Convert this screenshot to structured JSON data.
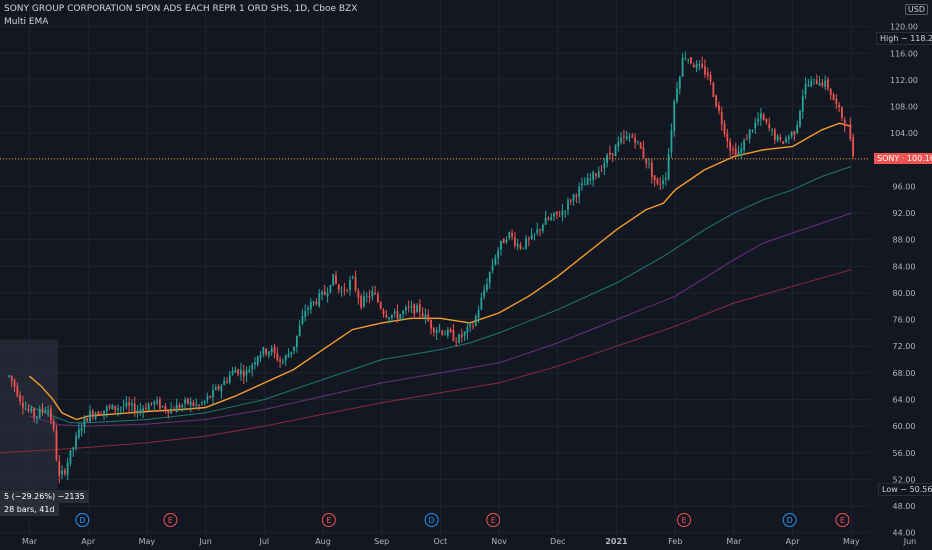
{
  "header": {
    "title": "SONY GROUP CORPORATION SPON ADS EACH REPR 1 ORD SHS, 1D, Cboe BZX",
    "indicator": "Multi EMA"
  },
  "currency": "USD",
  "high_label": "High",
  "high_value": "118.22",
  "low_label": "Low",
  "low_value": "50.56",
  "ticker_label": "SONY",
  "last_price": "100.16",
  "measure": {
    "line1": "5 (−29.26%) −2135",
    "line2": "28 bars, 41d"
  },
  "colors": {
    "up": "#26a69a",
    "down": "#ef5350",
    "ema_short": "#f59d2a",
    "ema_2": "#1b7a6b",
    "ema_3": "#6b2f7d",
    "ema_4": "#8e2a3a",
    "background": "#131722",
    "grid": "#1f2330"
  },
  "chart_data": {
    "type": "candlestick",
    "title": "SONY GROUP CORPORATION SPON ADS EACH REPR 1 ORD SHS, 1D, Cboe BZX",
    "y_ticks": [
      44,
      48,
      52,
      56,
      60,
      64,
      68,
      72,
      76,
      80,
      84,
      88,
      92,
      96,
      100,
      104,
      108,
      112,
      116,
      120
    ],
    "ylim": [
      43.5,
      124
    ],
    "x_ticks": [
      {
        "label": "Mar",
        "t": 0
      },
      {
        "label": "Apr",
        "t": 1
      },
      {
        "label": "May",
        "t": 2
      },
      {
        "label": "Jun",
        "t": 3
      },
      {
        "label": "Jul",
        "t": 4
      },
      {
        "label": "Aug",
        "t": 5
      },
      {
        "label": "Sep",
        "t": 6
      },
      {
        "label": "Oct",
        "t": 7
      },
      {
        "label": "Nov",
        "t": 8
      },
      {
        "label": "Dec",
        "t": 9
      },
      {
        "label": "2021",
        "t": 10
      },
      {
        "label": "Feb",
        "t": 11
      },
      {
        "label": "Mar",
        "t": 12
      },
      {
        "label": "Apr",
        "t": 13
      },
      {
        "label": "May",
        "t": 14
      },
      {
        "label": "Jun",
        "t": 15
      }
    ],
    "events": [
      {
        "label": "D",
        "t": 0.9,
        "kind": "dividend"
      },
      {
        "label": "E",
        "t": 2.4,
        "kind": "earnings"
      },
      {
        "label": "E",
        "t": 5.1,
        "kind": "earnings"
      },
      {
        "label": "D",
        "t": 6.85,
        "kind": "dividend"
      },
      {
        "label": "E",
        "t": 7.9,
        "kind": "earnings"
      },
      {
        "label": "E",
        "t": 11.15,
        "kind": "earnings"
      },
      {
        "label": "D",
        "t": 12.95,
        "kind": "dividend"
      },
      {
        "label": "E",
        "t": 13.85,
        "kind": "earnings"
      }
    ],
    "price_anchors": [
      [
        -0.35,
        67.5
      ],
      [
        -0.25,
        66
      ],
      [
        -0.15,
        64
      ],
      [
        -0.05,
        62.5
      ],
      [
        0.1,
        61.5
      ],
      [
        0.3,
        63
      ],
      [
        0.4,
        60
      ],
      [
        0.5,
        52
      ],
      [
        0.6,
        53.5
      ],
      [
        0.75,
        57
      ],
      [
        0.9,
        60.5
      ],
      [
        1.05,
        62
      ],
      [
        1.3,
        62.5
      ],
      [
        1.6,
        63
      ],
      [
        1.85,
        62.5
      ],
      [
        2.1,
        63.5
      ],
      [
        2.4,
        62.5
      ],
      [
        2.7,
        63.5
      ],
      [
        2.9,
        63
      ],
      [
        3.2,
        65.5
      ],
      [
        3.5,
        68.5
      ],
      [
        3.7,
        68
      ],
      [
        3.9,
        71
      ],
      [
        4.1,
        71.5
      ],
      [
        4.3,
        69.5
      ],
      [
        4.5,
        72
      ],
      [
        4.7,
        77.5
      ],
      [
        4.9,
        79
      ],
      [
        5.05,
        80
      ],
      [
        5.15,
        82.5
      ],
      [
        5.3,
        80
      ],
      [
        5.5,
        82
      ],
      [
        5.65,
        78.5
      ],
      [
        5.85,
        80
      ],
      [
        6.05,
        77
      ],
      [
        6.25,
        76.5
      ],
      [
        6.45,
        77.5
      ],
      [
        6.65,
        77.5
      ],
      [
        6.85,
        75
      ],
      [
        7.1,
        74
      ],
      [
        7.3,
        73
      ],
      [
        7.55,
        75
      ],
      [
        7.7,
        79
      ],
      [
        7.8,
        82
      ],
      [
        7.95,
        86
      ],
      [
        8.15,
        89
      ],
      [
        8.35,
        87
      ],
      [
        8.55,
        88
      ],
      [
        8.75,
        90.5
      ],
      [
        9.05,
        92
      ],
      [
        9.3,
        95
      ],
      [
        9.55,
        97
      ],
      [
        9.7,
        98.5
      ],
      [
        9.9,
        101
      ],
      [
        10.1,
        103
      ],
      [
        10.3,
        103.5
      ],
      [
        10.5,
        100
      ],
      [
        10.7,
        96
      ],
      [
        10.85,
        98
      ],
      [
        11.0,
        110
      ],
      [
        11.15,
        116
      ],
      [
        11.35,
        114
      ],
      [
        11.55,
        113
      ],
      [
        11.75,
        107
      ],
      [
        11.95,
        101.5
      ],
      [
        12.1,
        101
      ],
      [
        12.25,
        104
      ],
      [
        12.45,
        106.5
      ],
      [
        12.65,
        104
      ],
      [
        12.8,
        102.5
      ],
      [
        13.05,
        104.5
      ],
      [
        13.2,
        111
      ],
      [
        13.45,
        112
      ],
      [
        13.6,
        111
      ],
      [
        13.75,
        108
      ],
      [
        13.9,
        105.5
      ],
      [
        14.0,
        103
      ],
      [
        14.05,
        100.16
      ]
    ],
    "ema_short": [
      [
        0.0,
        67.5
      ],
      [
        0.2,
        66
      ],
      [
        0.4,
        64
      ],
      [
        0.55,
        62
      ],
      [
        0.8,
        61
      ],
      [
        1.0,
        61.5
      ],
      [
        1.4,
        61.8
      ],
      [
        2.0,
        62.2
      ],
      [
        2.6,
        62.5
      ],
      [
        3.0,
        62.8
      ],
      [
        3.5,
        64.5
      ],
      [
        4.0,
        66.5
      ],
      [
        4.5,
        68.5
      ],
      [
        5.0,
        71.5
      ],
      [
        5.5,
        74.5
      ],
      [
        6.0,
        75.5
      ],
      [
        6.5,
        76.2
      ],
      [
        7.0,
        76.2
      ],
      [
        7.5,
        75.5
      ],
      [
        8.0,
        77
      ],
      [
        8.5,
        79.5
      ],
      [
        9.0,
        82.5
      ],
      [
        9.5,
        86
      ],
      [
        10.0,
        89.5
      ],
      [
        10.5,
        92.5
      ],
      [
        10.8,
        93.5
      ],
      [
        11.0,
        95.5
      ],
      [
        11.5,
        98.5
      ],
      [
        12.0,
        100.5
      ],
      [
        12.5,
        101.5
      ],
      [
        13.0,
        102
      ],
      [
        13.5,
        104.5
      ],
      [
        13.8,
        105.5
      ],
      [
        14.0,
        105
      ]
    ],
    "ema_2": [
      [
        0.0,
        63
      ],
      [
        0.4,
        61.5
      ],
      [
        0.7,
        60.5
      ],
      [
        1.0,
        60.5
      ],
      [
        2.0,
        61
      ],
      [
        3.0,
        62
      ],
      [
        4.0,
        64
      ],
      [
        5.0,
        67
      ],
      [
        6.0,
        70
      ],
      [
        7.0,
        71.5
      ],
      [
        7.5,
        72.5
      ],
      [
        8.0,
        74
      ],
      [
        9.0,
        77.5
      ],
      [
        10.0,
        81.5
      ],
      [
        10.8,
        85.5
      ],
      [
        11.5,
        89.5
      ],
      [
        12.0,
        92
      ],
      [
        12.5,
        94
      ],
      [
        13.0,
        95.5
      ],
      [
        13.5,
        97.5
      ],
      [
        14.0,
        99
      ]
    ],
    "ema_3": [
      [
        0.0,
        61.5
      ],
      [
        0.5,
        60.2
      ],
      [
        1.0,
        60
      ],
      [
        2.0,
        60.3
      ],
      [
        3.0,
        61
      ],
      [
        4.0,
        62.5
      ],
      [
        5.0,
        64.5
      ],
      [
        6.0,
        66.5
      ],
      [
        7.0,
        68
      ],
      [
        8.0,
        69.5
      ],
      [
        9.0,
        72.5
      ],
      [
        10.0,
        76
      ],
      [
        11.0,
        79.5
      ],
      [
        12.0,
        85
      ],
      [
        12.5,
        87.5
      ],
      [
        13.0,
        89
      ],
      [
        13.5,
        90.5
      ],
      [
        14.0,
        92
      ]
    ],
    "ema_4": [
      [
        -0.5,
        56
      ],
      [
        0.5,
        56.5
      ],
      [
        1.0,
        56.8
      ],
      [
        2.0,
        57.5
      ],
      [
        3.0,
        58.5
      ],
      [
        4.0,
        60
      ],
      [
        5.0,
        61.8
      ],
      [
        6.0,
        63.5
      ],
      [
        7.0,
        65
      ],
      [
        8.0,
        66.5
      ],
      [
        9.0,
        69
      ],
      [
        10.0,
        72
      ],
      [
        11.0,
        75
      ],
      [
        12.0,
        78.5
      ],
      [
        13.0,
        81
      ],
      [
        14.0,
        83.5
      ]
    ]
  }
}
